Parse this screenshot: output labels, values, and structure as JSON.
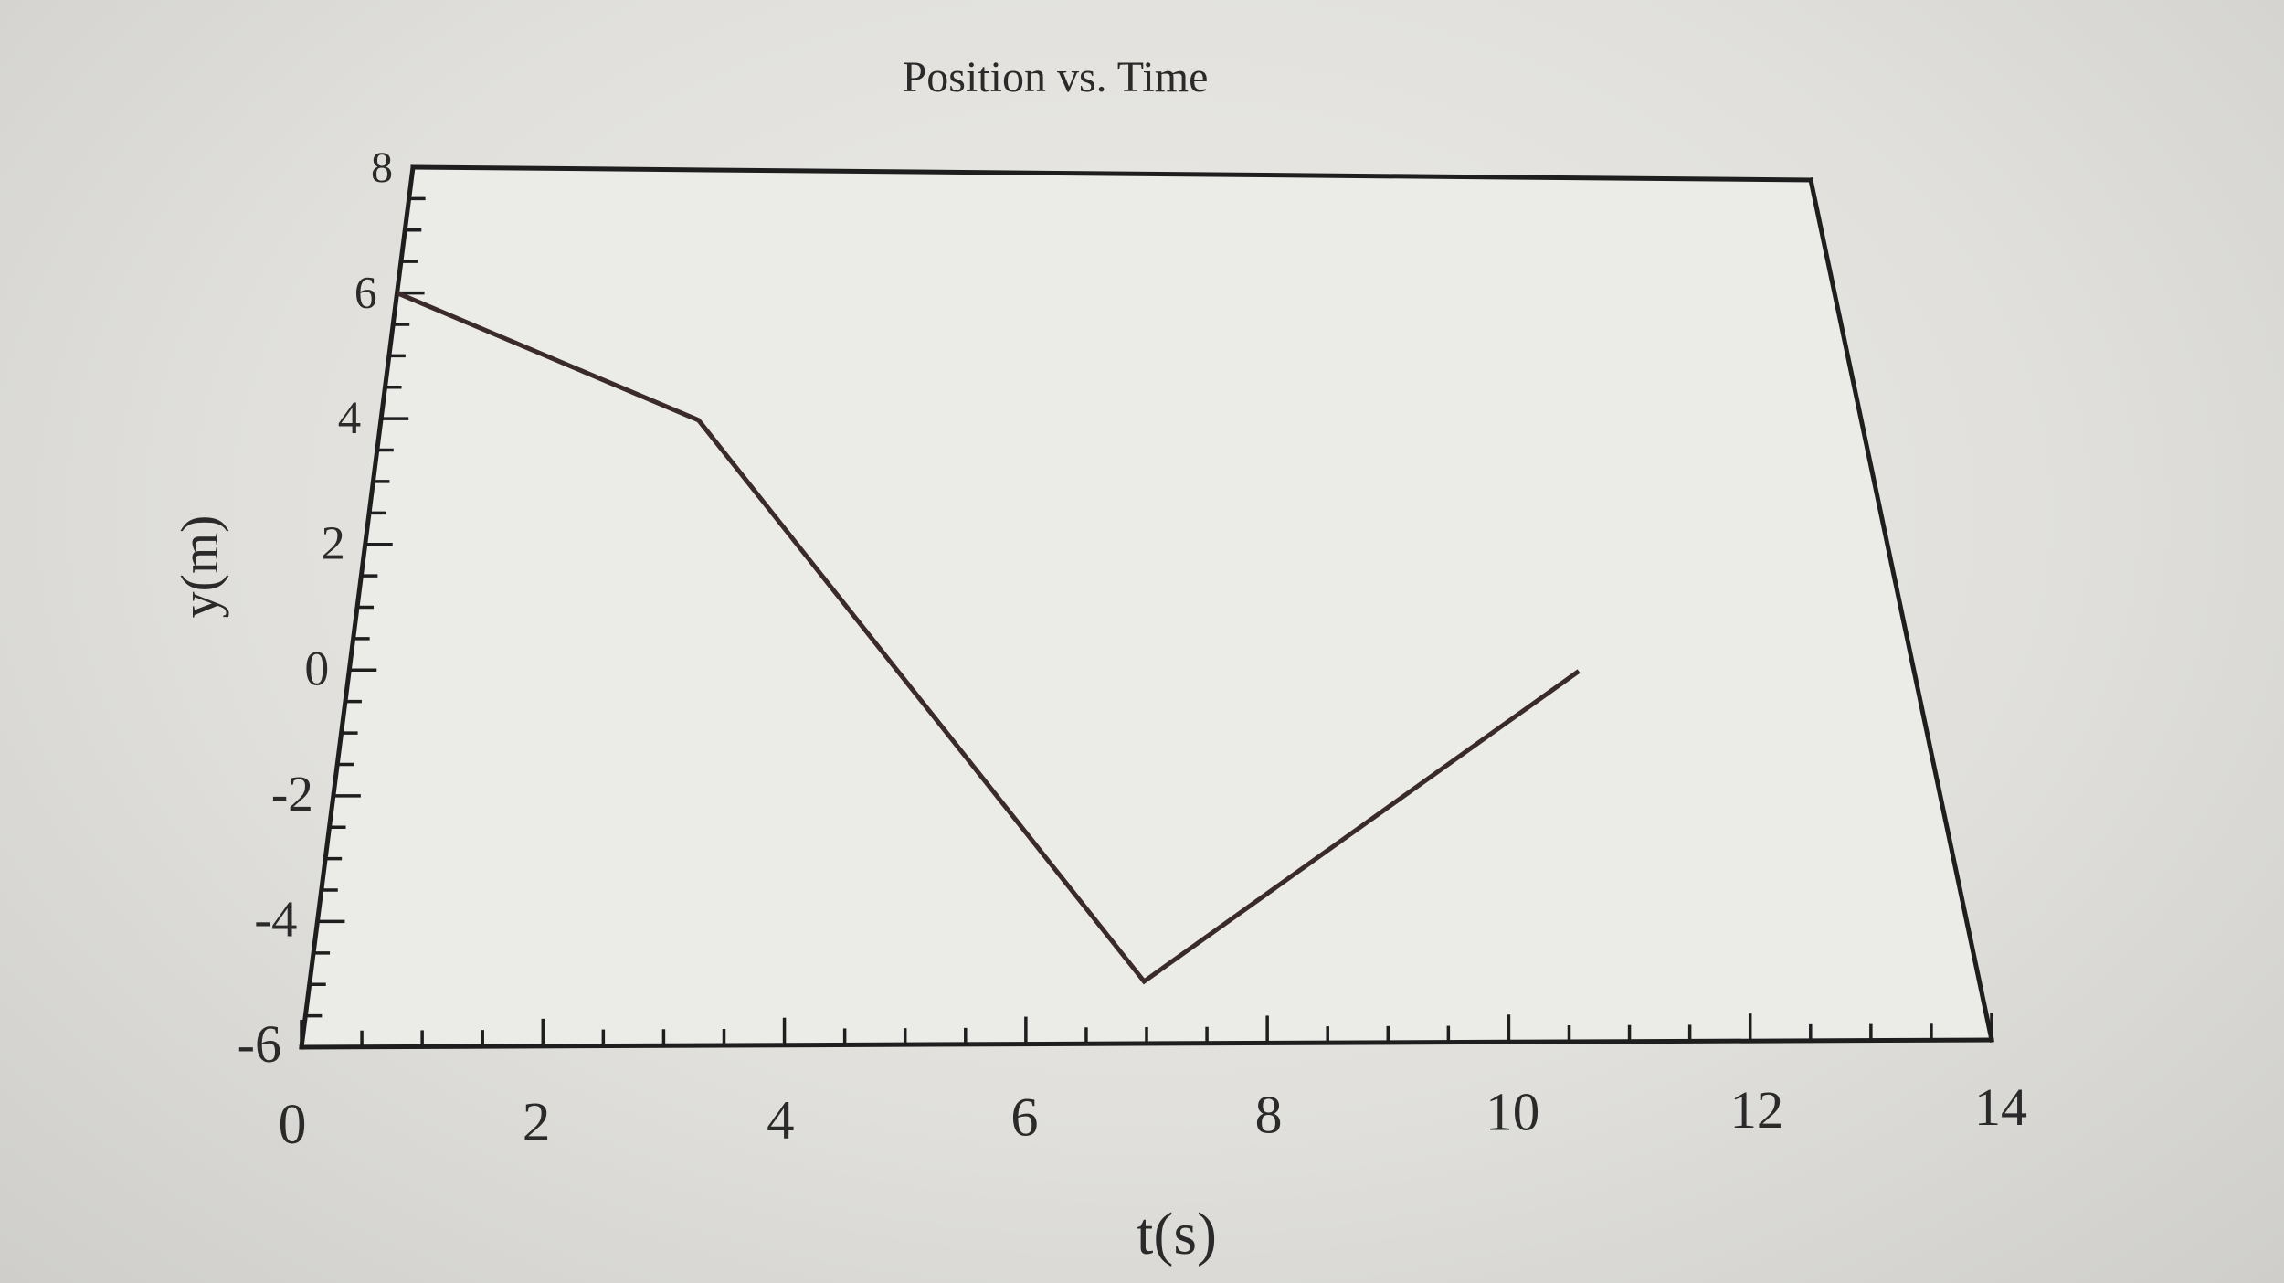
{
  "chart_data": {
    "type": "line",
    "title": "Position vs. Time",
    "xlabel": "t(s)",
    "ylabel": "y(m)",
    "xlim": [
      0,
      14
    ],
    "ylim": [
      -6,
      8
    ],
    "x_ticks": [
      0,
      2,
      4,
      6,
      8,
      10,
      12,
      14
    ],
    "y_ticks": [
      8,
      6,
      4,
      2,
      0,
      -2,
      -4,
      -6
    ],
    "x_tick_labels": [
      "0",
      "2",
      "4",
      "6",
      "8",
      "10",
      "12",
      "14"
    ],
    "y_tick_labels": [
      "8",
      "6",
      "4",
      "2",
      "0",
      "-2",
      "-4",
      "-6"
    ],
    "grid": false,
    "series": [
      {
        "x": [
          0,
          3,
          7,
          11
        ],
        "y": [
          6,
          4,
          -5,
          0
        ],
        "color": "#3a2a2a"
      }
    ]
  }
}
